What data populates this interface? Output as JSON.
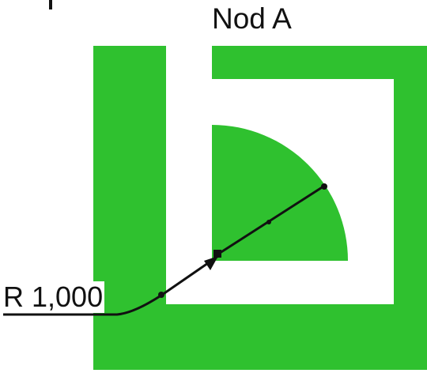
{
  "title": "Nod A",
  "radius_label": "R 1,000",
  "colors": {
    "fill": "#2fc12f",
    "fill_dark": "#1fa91f",
    "background": "#ffffff",
    "line": "#111111"
  }
}
